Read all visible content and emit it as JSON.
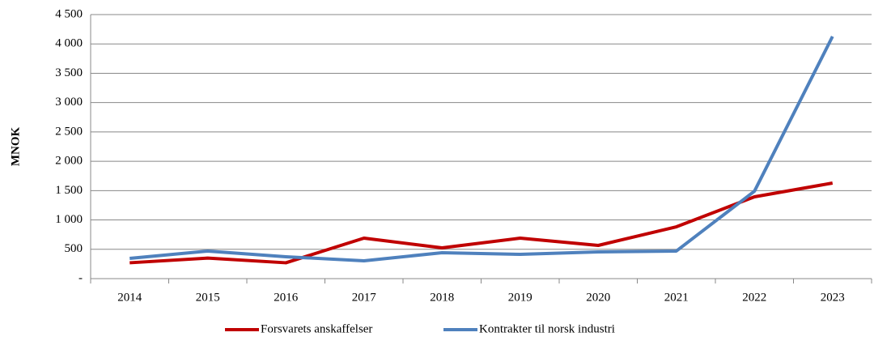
{
  "chart_data": {
    "type": "line",
    "y_label": "MNOK",
    "categories": [
      "2014",
      "2015",
      "2016",
      "2017",
      "2018",
      "2019",
      "2020",
      "2021",
      "2022",
      "2023"
    ],
    "series": [
      {
        "name": "Forsvarets anskaffelser",
        "color": "#c00000",
        "values": [
          270,
          350,
          270,
          690,
          525,
          690,
          566,
          883,
          1394,
          1629
        ]
      },
      {
        "name": "Kontrakter til norsk industri",
        "color": "#4f81bd",
        "values": [
          345,
          470,
          373,
          304,
          442,
          414,
          455,
          470,
          1490,
          4127
        ]
      }
    ],
    "ylim": [
      0,
      4500
    ],
    "yticks": [
      {
        "value": 0,
        "label": "-"
      },
      500,
      {
        "value": 1000,
        "label": "1 000"
      },
      {
        "value": 1500,
        "label": "1 500"
      },
      {
        "value": 2000,
        "label": "2 000"
      },
      {
        "value": 2500,
        "label": "2 500"
      },
      {
        "value": 3000,
        "label": "3 000"
      },
      {
        "value": 3500,
        "label": "3 500"
      },
      {
        "value": 4000,
        "label": "4 000"
      },
      {
        "value": 4500,
        "label": "4 500"
      }
    ],
    "grid": true,
    "legend": "bottom"
  }
}
